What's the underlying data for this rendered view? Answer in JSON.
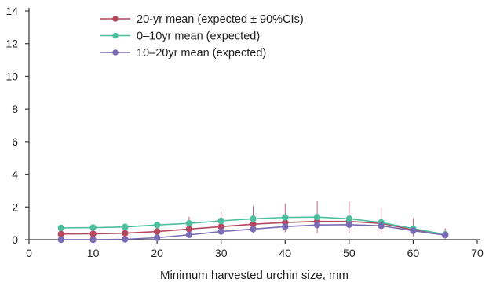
{
  "chart_data": {
    "type": "line",
    "title": "",
    "xlabel": "Minimum harvested urchin size, mm",
    "ylabel": "",
    "xlim": [
      0,
      70
    ],
    "ylim": [
      0,
      14
    ],
    "x_ticks": [
      0,
      10,
      20,
      30,
      40,
      50,
      60,
      70
    ],
    "y_ticks": [
      0,
      2,
      4,
      6,
      8,
      10,
      12,
      14
    ],
    "grid": false,
    "legend_position": "top-left",
    "x": [
      5,
      10,
      15,
      20,
      25,
      30,
      35,
      40,
      45,
      50,
      55,
      60,
      65
    ],
    "series": [
      {
        "name": "20-yr mean (expected ± 90%CIs)",
        "color": "#b5475f",
        "values": [
          0.35,
          0.36,
          0.4,
          0.5,
          0.65,
          0.8,
          0.95,
          1.05,
          1.12,
          1.12,
          1.0,
          0.6,
          0.32
        ],
        "ci_low": [
          0.15,
          0.15,
          0.15,
          0.2,
          0.3,
          0.4,
          0.4,
          0.45,
          0.4,
          0.4,
          0.35,
          0.2,
          0.05
        ],
        "ci_high": [
          0.5,
          0.55,
          0.65,
          1.0,
          1.4,
          1.7,
          2.05,
          2.2,
          2.4,
          2.35,
          2.0,
          1.3,
          0.7
        ]
      },
      {
        "name": "0–10yr mean (expected)",
        "color": "#4dbf9f",
        "values": [
          0.72,
          0.74,
          0.78,
          0.9,
          1.0,
          1.15,
          1.28,
          1.36,
          1.38,
          1.28,
          1.05,
          0.68,
          0.32
        ]
      },
      {
        "name": "10–20yr mean (expected)",
        "color": "#7a6cb4",
        "values": [
          0.0,
          0.0,
          0.02,
          0.12,
          0.3,
          0.5,
          0.65,
          0.8,
          0.9,
          0.92,
          0.85,
          0.55,
          0.28
        ]
      }
    ]
  }
}
